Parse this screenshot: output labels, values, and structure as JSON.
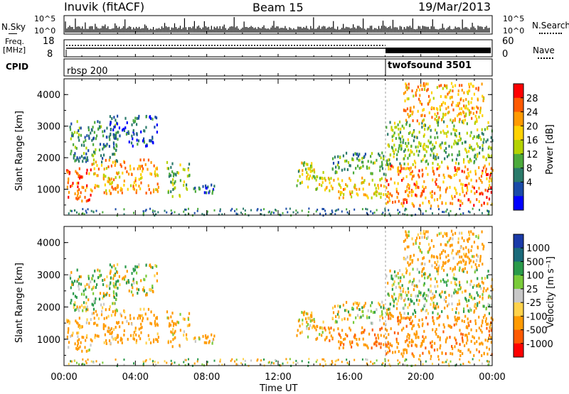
{
  "header": {
    "station": "Inuvik (fitACF)",
    "beam": "Beam 15",
    "date": "19/Mar/2013"
  },
  "panels": {
    "nsky": {
      "label": "N.Sky",
      "ticks": [
        "10^5",
        "10^0"
      ],
      "right_label": "N.Search",
      "right_ticks": [
        "10^5",
        "10^0"
      ]
    },
    "freq": {
      "label_line1": "Freq.",
      "label_line2": "[MHz]",
      "ticks": [
        "18",
        "8"
      ],
      "right_label": "Nave",
      "right_ticks": [
        "60",
        "0"
      ]
    },
    "cpid": {
      "label": "CPID",
      "segments": [
        "rbsp 200",
        "twofsound 3501"
      ]
    }
  },
  "time_axis": {
    "label": "Time UT",
    "ticks": [
      "00:00",
      "04:00",
      "08:00",
      "12:00",
      "16:00",
      "20:00",
      "00:00"
    ]
  },
  "chart_data": [
    {
      "type": "heatmap",
      "name": "power",
      "ylabel": "Slant Range [km]",
      "xlabel": "",
      "ylim": [
        180,
        4500
      ],
      "yticks": [
        "4000",
        "3000",
        "2000",
        "1000"
      ],
      "colorbar": {
        "label": "Power [dB]",
        "ticks": [
          "28",
          "24",
          "20",
          "16",
          "12",
          "8",
          "4"
        ],
        "colors": [
          "#ff0000",
          "#ff5a00",
          "#ff9a00",
          "#ffd200",
          "#b4d200",
          "#4caa3c",
          "#2a7a6a",
          "#1a4aa8",
          "#0000ff"
        ]
      },
      "segments": [
        {
          "t0": 0.1,
          "t1": 1.5,
          "r0": 650,
          "r1": 1700,
          "v": 26
        },
        {
          "t0": 1.5,
          "t1": 5.3,
          "r0": 900,
          "r1": 2000,
          "v": 22
        },
        {
          "t0": 0.3,
          "t1": 3.0,
          "r0": 1900,
          "r1": 3200,
          "v": 10
        },
        {
          "t0": 2.5,
          "t1": 5.2,
          "r0": 2400,
          "r1": 3400,
          "v": 6
        },
        {
          "t0": 5.7,
          "t1": 7.0,
          "r0": 800,
          "r1": 1900,
          "v": 14
        },
        {
          "t0": 7.0,
          "t1": 8.5,
          "r0": 900,
          "r1": 1200,
          "v": 8
        },
        {
          "t0": 13.0,
          "t1": 14.5,
          "r0": 1000,
          "r1": 1900,
          "v": 16
        },
        {
          "t0": 14.5,
          "t1": 18.0,
          "r0": 750,
          "r1": 1400,
          "v": 20
        },
        {
          "t0": 15.0,
          "t1": 18.0,
          "r0": 1500,
          "r1": 2200,
          "v": 12
        },
        {
          "t0": 18.0,
          "t1": 24.0,
          "r0": 500,
          "r1": 1800,
          "v": 24
        },
        {
          "t0": 18.0,
          "t1": 24.0,
          "r0": 1800,
          "r1": 3200,
          "v": 14
        },
        {
          "t0": 19.0,
          "t1": 23.5,
          "r0": 3200,
          "r1": 4400,
          "v": 22
        }
      ]
    },
    {
      "type": "heatmap",
      "name": "velocity",
      "ylabel": "Slant Range [km]",
      "xlabel": "Time UT",
      "ylim": [
        180,
        4500
      ],
      "yticks": [
        "4000",
        "3000",
        "2000",
        "1000"
      ],
      "colorbar": {
        "label": "Velocity [m s⁻¹]",
        "ticks": [
          "1000",
          "500",
          "100",
          "25",
          "-25",
          "-100",
          "-500",
          "-1000"
        ],
        "colors": [
          "#1a3aa8",
          "#1a6a7a",
          "#2a9a4a",
          "#7acb3a",
          "#c8c8c8",
          "#ffd24a",
          "#ff9a00",
          "#ff5a00",
          "#ff0000"
        ]
      },
      "segments": [
        {
          "t0": 0.1,
          "t1": 1.5,
          "r0": 650,
          "r1": 1700,
          "v": -200
        },
        {
          "t0": 1.5,
          "t1": 5.3,
          "r0": 900,
          "r1": 2000,
          "v": -250
        },
        {
          "t0": 0.3,
          "t1": 3.0,
          "r0": 1900,
          "r1": 3200,
          "v": 60
        },
        {
          "t0": 2.5,
          "t1": 5.2,
          "r0": 2400,
          "r1": 3400,
          "v": 0
        },
        {
          "t0": 5.7,
          "t1": 7.0,
          "r0": 800,
          "r1": 1900,
          "v": -150
        },
        {
          "t0": 7.0,
          "t1": 8.5,
          "r0": 900,
          "r1": 1200,
          "v": -200
        },
        {
          "t0": 13.0,
          "t1": 14.5,
          "r0": 1000,
          "r1": 1900,
          "v": -150
        },
        {
          "t0": 14.5,
          "t1": 18.0,
          "r0": 750,
          "r1": 1400,
          "v": -400
        },
        {
          "t0": 15.0,
          "t1": 18.0,
          "r0": 1500,
          "r1": 2200,
          "v": 0
        },
        {
          "t0": 18.0,
          "t1": 24.0,
          "r0": 500,
          "r1": 1800,
          "v": -350
        },
        {
          "t0": 18.0,
          "t1": 24.0,
          "r0": 1800,
          "r1": 3200,
          "v": 0
        },
        {
          "t0": 19.0,
          "t1": 23.5,
          "r0": 3200,
          "r1": 4400,
          "v": -200
        }
      ]
    }
  ]
}
